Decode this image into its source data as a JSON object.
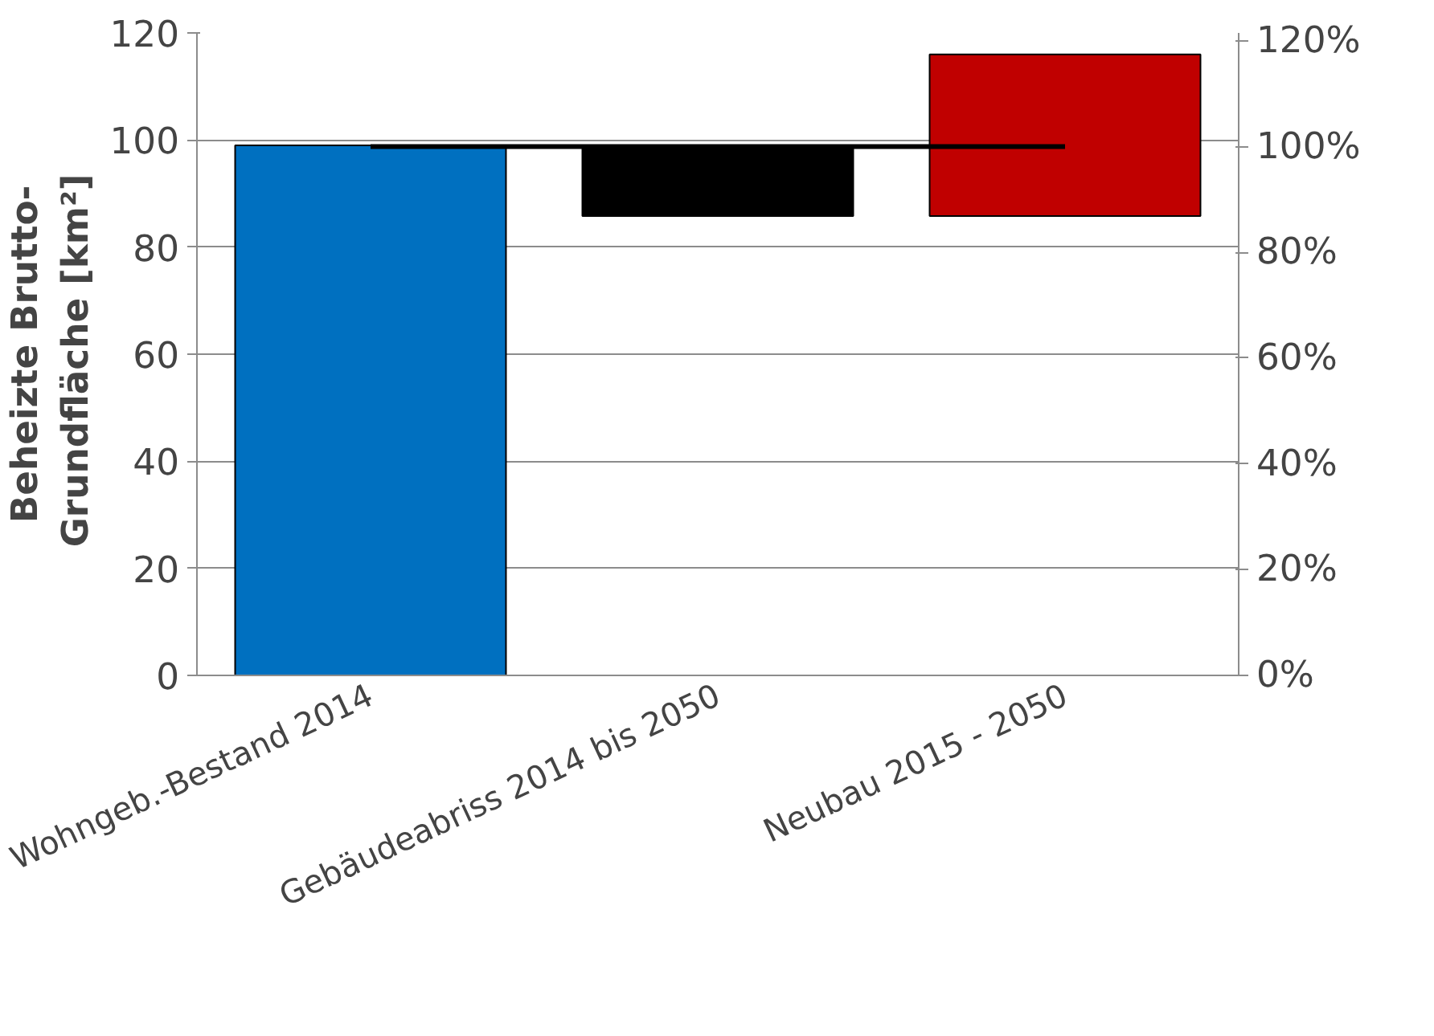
{
  "chart_data": {
    "type": "bar",
    "ylabel": "Beheizte Brutto-\nGrundfläche  [km²]",
    "categories": [
      "Wohngeb.-Bestand 2014",
      "Gebäudeabriss 2014 bis 2050",
      "Neubau 2015 - 2050"
    ],
    "series": [
      {
        "values": [
          99,
          13.2,
          30.2
        ],
        "base": [
          0,
          85.8,
          85.8
        ],
        "colors": [
          "#0070c0",
          "#000000",
          "#c00000"
        ]
      },
      {
        "type": "line",
        "axis": "y2",
        "color": "#000000",
        "values": [
          100,
          100,
          100
        ]
      }
    ],
    "ylim": [
      0,
      120
    ],
    "yticks": [
      0,
      20,
      40,
      60,
      80,
      100,
      120
    ],
    "y2lim": [
      0,
      121.5
    ],
    "y2ticks": [
      {
        "value": 0,
        "label": "0%"
      },
      {
        "value": 20,
        "label": "20%"
      },
      {
        "value": 40,
        "label": "40%"
      },
      {
        "value": 60,
        "label": "60%"
      },
      {
        "value": 80,
        "label": "80%"
      },
      {
        "value": 100,
        "label": "100%"
      },
      {
        "value": 120,
        "label": "120%"
      }
    ],
    "grid": "y"
  }
}
